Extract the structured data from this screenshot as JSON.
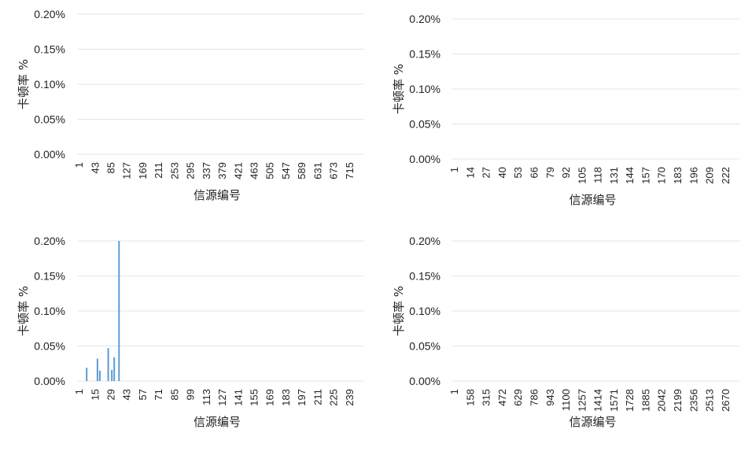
{
  "chart_data": [
    {
      "type": "bar",
      "xlabel": "信源编号",
      "ylabel": "卡顿率 %",
      "ylim": [
        0,
        0.2
      ],
      "yticks": [
        "0.00%",
        "0.05%",
        "0.10%",
        "0.15%",
        "0.20%"
      ],
      "xticks": [
        "1",
        "43",
        "85",
        "127",
        "169",
        "211",
        "253",
        "295",
        "337",
        "379",
        "421",
        "463",
        "505",
        "547",
        "589",
        "631",
        "673",
        "715"
      ],
      "x_range": [
        1,
        750
      ],
      "bars": [],
      "grid": true
    },
    {
      "type": "bar",
      "xlabel": "信源编号",
      "ylabel": "卡顿率 %",
      "ylim": [
        0,
        0.2
      ],
      "yticks": [
        "0.00%",
        "0.05%",
        "0.10%",
        "0.15%",
        "0.20%"
      ],
      "xticks": [
        "1",
        "14",
        "27",
        "40",
        "53",
        "66",
        "79",
        "92",
        "105",
        "118",
        "131",
        "144",
        "157",
        "170",
        "183",
        "196",
        "209",
        "222"
      ],
      "x_range": [
        1,
        222
      ],
      "bars": [],
      "grid": true
    },
    {
      "type": "bar",
      "xlabel": "信源编号",
      "ylabel": "卡顿率 %",
      "ylim": [
        0,
        0.2
      ],
      "yticks": [
        "0.00%",
        "0.05%",
        "0.10%",
        "0.15%",
        "0.20%"
      ],
      "xticks": [
        "1",
        "15",
        "29",
        "43",
        "57",
        "71",
        "85",
        "99",
        "113",
        "127",
        "141",
        "155",
        "169",
        "183",
        "197",
        "211",
        "225",
        "239"
      ],
      "x_range": [
        1,
        240
      ],
      "bars": [
        {
          "x": 9,
          "y": 0.019
        },
        {
          "x": 18,
          "y": 0.032
        },
        {
          "x": 20,
          "y": 0.015
        },
        {
          "x": 27,
          "y": 0.047
        },
        {
          "x": 30,
          "y": 0.016
        },
        {
          "x": 32,
          "y": 0.034
        },
        {
          "x": 36,
          "y": 0.2
        }
      ],
      "grid": true
    },
    {
      "type": "bar",
      "xlabel": "信源编号",
      "ylabel": "卡顿率 %",
      "ylim": [
        0,
        0.2
      ],
      "yticks": [
        "0.00%",
        "0.05%",
        "0.10%",
        "0.15%",
        "0.20%"
      ],
      "xticks": [
        "1",
        "158",
        "315",
        "472",
        "629",
        "786",
        "943",
        "1100",
        "1257",
        "1414",
        "1571",
        "1728",
        "1885",
        "2042",
        "2199",
        "2356",
        "2513",
        "2670"
      ],
      "x_range": [
        1,
        2827
      ],
      "bars": [],
      "grid": true
    }
  ]
}
